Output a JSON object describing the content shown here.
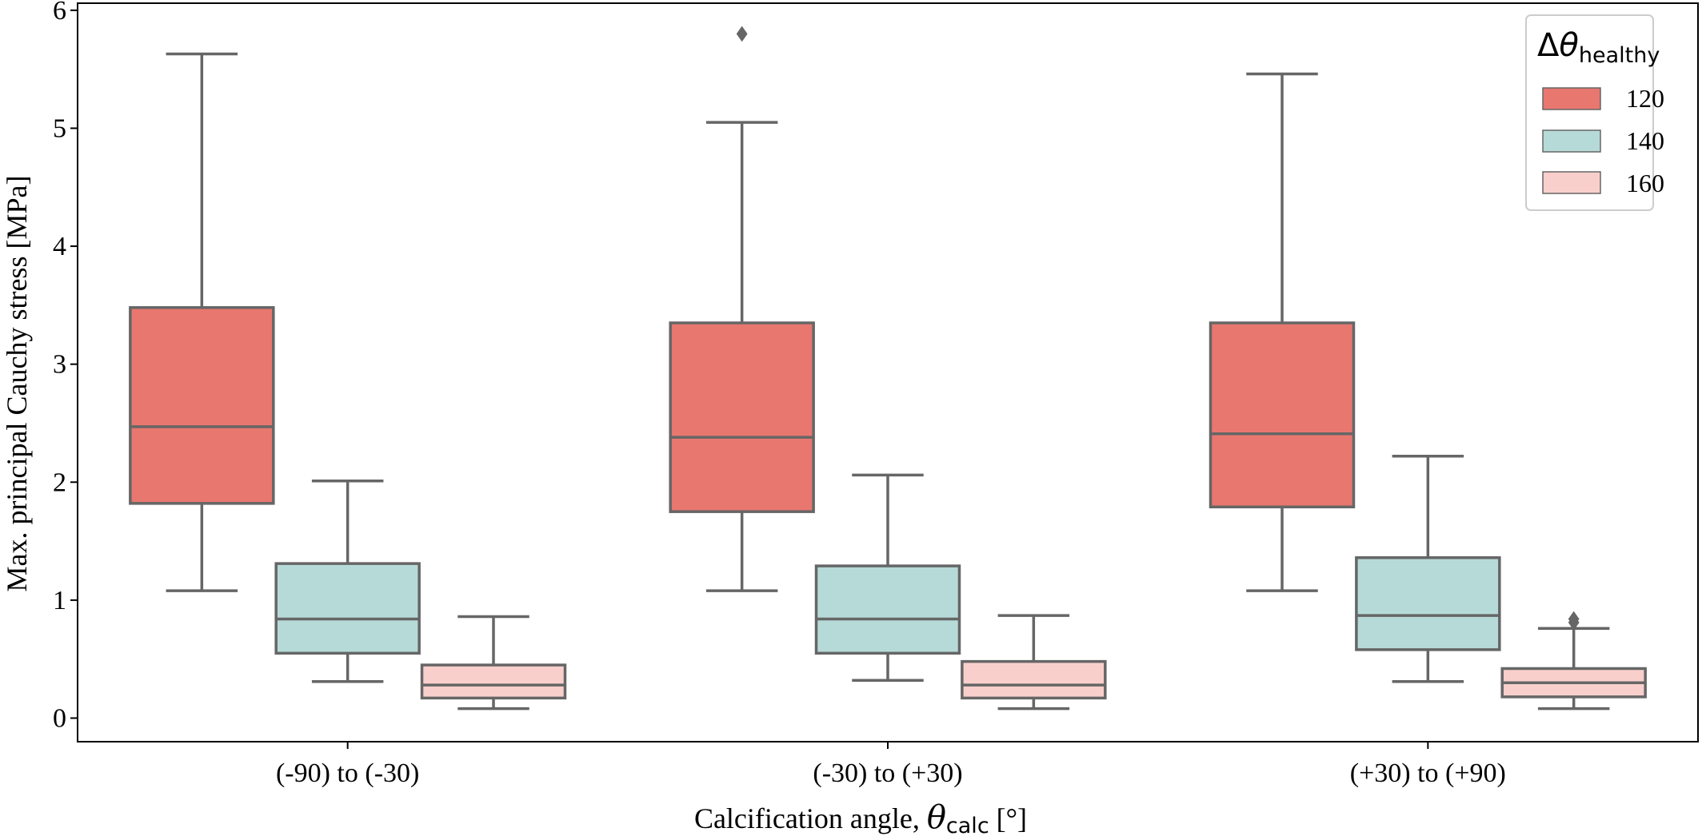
{
  "chart_data": {
    "type": "box",
    "title": "",
    "xlabel": {
      "prefix": "Calcification angle, ",
      "symbol": "θ",
      "subscript": "calc",
      "suffix": " [°]"
    },
    "ylabel": "Max. principal Cauchy stress [MPa]",
    "ylim": [
      -0.2,
      6.06
    ],
    "yticks": [
      0,
      1,
      2,
      3,
      4,
      5,
      6
    ],
    "grid": false,
    "categories": [
      "(-90) to (-30)",
      "(-30) to (+30)",
      "(+30) to (+90)"
    ],
    "legend": {
      "title_prefix": "Δ",
      "title_symbol": "θ",
      "title_subscript": "healthy",
      "placement": "top-right"
    },
    "series": [
      {
        "name": "120",
        "color": "#e8776f",
        "boxes": [
          {
            "whisker_low": 1.08,
            "q1": 1.82,
            "median": 2.47,
            "q3": 3.48,
            "whisker_high": 5.63,
            "outliers": []
          },
          {
            "whisker_low": 1.08,
            "q1": 1.75,
            "median": 2.38,
            "q3": 3.35,
            "whisker_high": 5.05,
            "outliers": [
              5.8
            ]
          },
          {
            "whisker_low": 1.08,
            "q1": 1.79,
            "median": 2.41,
            "q3": 3.35,
            "whisker_high": 5.46,
            "outliers": []
          }
        ]
      },
      {
        "name": "140",
        "color": "#b6dad8",
        "boxes": [
          {
            "whisker_low": 0.31,
            "q1": 0.55,
            "median": 0.84,
            "q3": 1.31,
            "whisker_high": 2.01,
            "outliers": []
          },
          {
            "whisker_low": 0.32,
            "q1": 0.55,
            "median": 0.84,
            "q3": 1.29,
            "whisker_high": 2.06,
            "outliers": []
          },
          {
            "whisker_low": 0.31,
            "q1": 0.58,
            "median": 0.87,
            "q3": 1.36,
            "whisker_high": 2.22,
            "outliers": []
          }
        ]
      },
      {
        "name": "160",
        "color": "#f9cfcc",
        "boxes": [
          {
            "whisker_low": 0.08,
            "q1": 0.17,
            "median": 0.28,
            "q3": 0.45,
            "whisker_high": 0.86,
            "outliers": []
          },
          {
            "whisker_low": 0.08,
            "q1": 0.17,
            "median": 0.28,
            "q3": 0.48,
            "whisker_high": 0.87,
            "outliers": []
          },
          {
            "whisker_low": 0.08,
            "q1": 0.18,
            "median": 0.3,
            "q3": 0.42,
            "whisker_high": 0.76,
            "outliers": [
              0.81,
              0.84
            ]
          }
        ]
      }
    ]
  }
}
